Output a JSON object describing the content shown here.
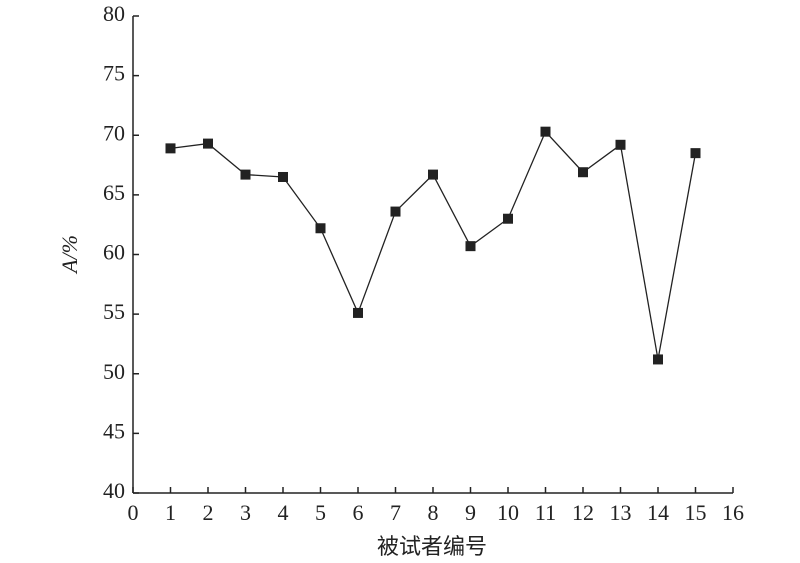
{
  "chart_data": {
    "type": "line",
    "x": [
      1,
      2,
      3,
      4,
      5,
      6,
      7,
      8,
      9,
      10,
      11,
      12,
      13,
      14,
      15
    ],
    "series": [
      {
        "name": "A",
        "color": "#222222",
        "values": [
          68.9,
          69.3,
          66.7,
          66.5,
          62.2,
          55.1,
          63.6,
          66.7,
          60.7,
          63.0,
          70.3,
          66.9,
          69.2,
          51.2,
          68.5
        ]
      }
    ],
    "xlabel": "被试者编号",
    "ylabel": "A/%",
    "xlim": [
      0,
      16
    ],
    "xticks": [
      0,
      1,
      2,
      3,
      4,
      5,
      6,
      7,
      8,
      9,
      10,
      11,
      12,
      13,
      14,
      15,
      16
    ],
    "ylim": [
      40,
      80
    ],
    "yticks": [
      40,
      45,
      50,
      55,
      60,
      65,
      70,
      75,
      80
    ],
    "grid": false,
    "marker": "square"
  }
}
